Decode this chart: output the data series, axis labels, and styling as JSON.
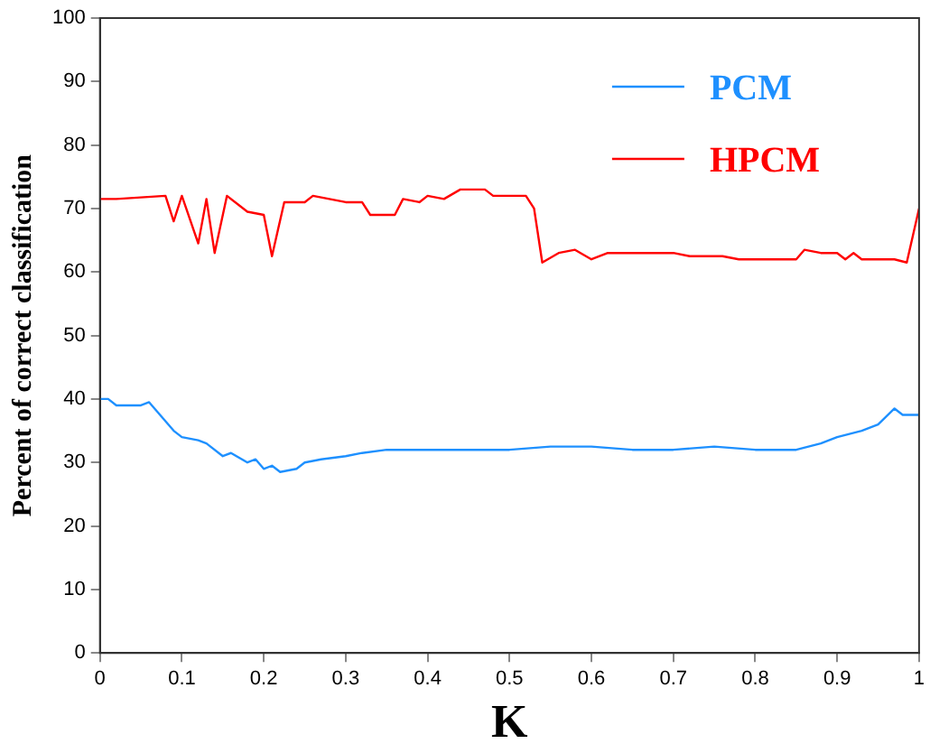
{
  "chart_data": {
    "type": "line",
    "xlabel": "K",
    "ylabel": "Percent of correct classification",
    "xlim": [
      0,
      1
    ],
    "ylim": [
      0,
      100
    ],
    "xticks": [
      0,
      0.1,
      0.2,
      0.3,
      0.4,
      0.5,
      0.6,
      0.7,
      0.8,
      0.9,
      1
    ],
    "yticks": [
      0,
      10,
      20,
      30,
      40,
      50,
      60,
      70,
      80,
      90,
      100
    ],
    "grid": false,
    "legend": "top right",
    "marker": "none",
    "line_style": "solid",
    "series": [
      {
        "name": "PCM",
        "color": "#1e90ff",
        "x": [
          0,
          0.01,
          0.02,
          0.05,
          0.06,
          0.07,
          0.09,
          0.1,
          0.12,
          0.13,
          0.15,
          0.16,
          0.18,
          0.19,
          0.2,
          0.21,
          0.22,
          0.24,
          0.25,
          0.27,
          0.3,
          0.32,
          0.35,
          0.4,
          0.45,
          0.5,
          0.55,
          0.6,
          0.65,
          0.7,
          0.75,
          0.8,
          0.85,
          0.88,
          0.9,
          0.93,
          0.95,
          0.97,
          0.98,
          1
        ],
        "values": [
          40,
          40,
          39,
          39,
          39.5,
          38,
          35,
          34,
          33.5,
          33,
          31,
          31.5,
          30,
          30.5,
          29,
          29.5,
          28.5,
          29,
          30,
          30.5,
          31,
          31.5,
          32,
          32,
          32,
          32,
          32.5,
          32.5,
          32,
          32,
          32.5,
          32,
          32,
          33,
          34,
          35,
          36,
          38.5,
          37.5,
          37.5
        ]
      },
      {
        "name": "HPCM",
        "color": "#ff0000",
        "x": [
          0,
          0.02,
          0.08,
          0.09,
          0.1,
          0.12,
          0.13,
          0.14,
          0.155,
          0.18,
          0.2,
          0.21,
          0.225,
          0.25,
          0.26,
          0.3,
          0.32,
          0.33,
          0.36,
          0.37,
          0.39,
          0.4,
          0.42,
          0.44,
          0.47,
          0.48,
          0.52,
          0.53,
          0.54,
          0.56,
          0.58,
          0.6,
          0.62,
          0.7,
          0.72,
          0.76,
          0.78,
          0.85,
          0.86,
          0.88,
          0.9,
          0.91,
          0.92,
          0.93,
          0.97,
          0.985,
          1
        ],
        "values": [
          71.5,
          71.5,
          72,
          68,
          72,
          64.5,
          71.5,
          63,
          72,
          69.5,
          69,
          62.5,
          71,
          71,
          72,
          71,
          71,
          69,
          69,
          71.5,
          71,
          72,
          71.5,
          73,
          73,
          72,
          72,
          70,
          61.5,
          63,
          63.5,
          62,
          63,
          63,
          62.5,
          62.5,
          62,
          62,
          63.5,
          63,
          63,
          62,
          63,
          62,
          62,
          61.5,
          70
        ]
      }
    ]
  }
}
